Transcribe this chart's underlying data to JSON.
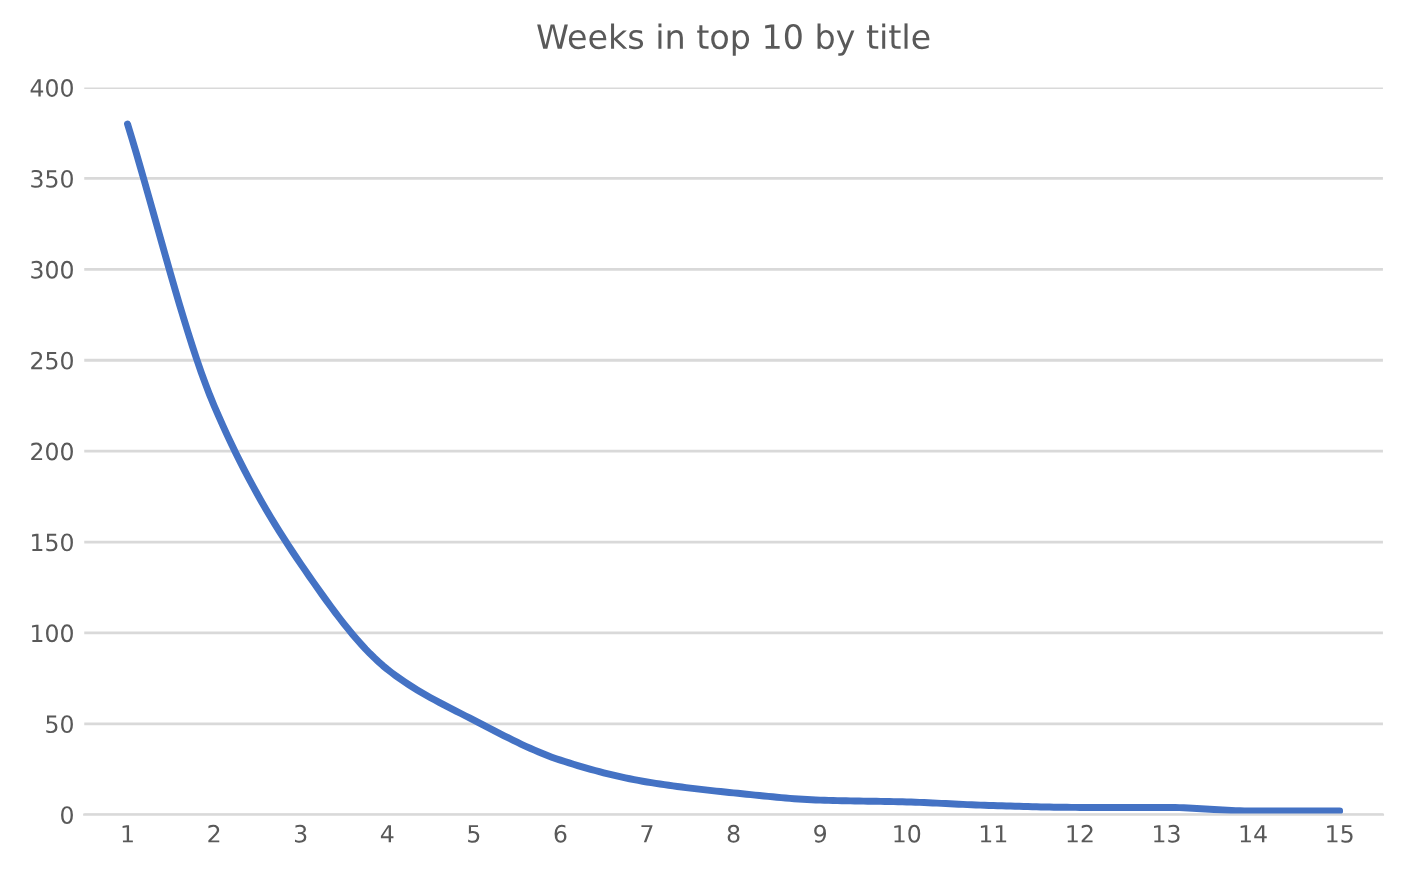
{
  "chart_data": {
    "type": "line",
    "title": "Weeks in top 10 by title",
    "categories": [
      "1",
      "2",
      "3",
      "4",
      "5",
      "6",
      "7",
      "8",
      "9",
      "10",
      "11",
      "12",
      "13",
      "14",
      "15"
    ],
    "series": [
      {
        "color": "#4472c4",
        "values": [
          380,
          225,
          138,
          80,
          52,
          30,
          18,
          12,
          8,
          7,
          5,
          4,
          4,
          2,
          2
        ]
      }
    ],
    "ylim": [
      0,
      400
    ],
    "yticks": [
      0,
      50,
      100,
      150,
      200,
      250,
      300,
      350,
      400
    ],
    "grid": "y",
    "legend": false,
    "marker": "none",
    "line_style": "solid"
  }
}
